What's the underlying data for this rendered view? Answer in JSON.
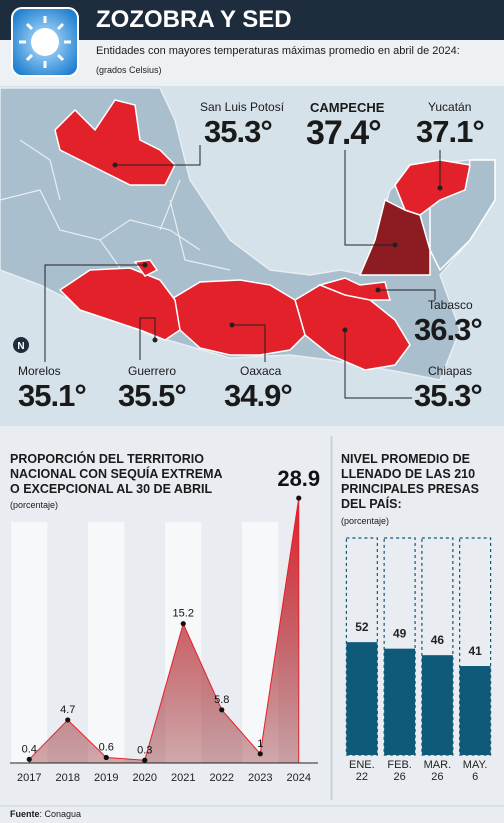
{
  "header": {
    "title": "ZOZOBRA Y SED",
    "subtitle": "Entidades con mayores temperaturas máximas promedio en abril de 2024:",
    "unit": "(grados Celsius)"
  },
  "map": {
    "states": [
      {
        "name": "San Luis Potosí",
        "temp": "35.3°"
      },
      {
        "name": "CAMPECHE",
        "temp": "37.4°"
      },
      {
        "name": "Yucatán",
        "temp": "37.1°"
      },
      {
        "name": "Tabasco",
        "temp": "36.3°"
      },
      {
        "name": "Chiapas",
        "temp": "35.3°"
      },
      {
        "name": "Morelos",
        "temp": "35.1°"
      },
      {
        "name": "Guerrero",
        "temp": "35.5°"
      },
      {
        "name": "Oaxaca",
        "temp": "34.9°"
      }
    ]
  },
  "chart_data": [
    {
      "type": "area",
      "title": "PROPORCIÓN DEL TERRITORIO NACIONAL CON SEQUÍA EXTREMA O EXCEPCIONAL AL 30 DE ABRIL",
      "subtitle": "(porcentaje)",
      "categories": [
        "2017",
        "2018",
        "2019",
        "2020",
        "2021",
        "2022",
        "2023",
        "2024"
      ],
      "values": [
        0.4,
        4.7,
        0.6,
        0.3,
        15.2,
        5.8,
        1,
        28.9
      ],
      "color": "#e3212b",
      "ylim": [
        0,
        30
      ]
    },
    {
      "type": "bar",
      "title": "NIVEL PROMEDIO DE LLENADO DE LAS 210 PRINCIPALES PRESAS DEL PAÍS:",
      "subtitle": "(porcentaje)",
      "categories": [
        "ENE. 22",
        "FEB. 26",
        "MAR. 26",
        "MAY. 6"
      ],
      "values": [
        52,
        49,
        46,
        41
      ],
      "color": "#0f5a78",
      "ylim": [
        0,
        100
      ]
    }
  ],
  "footer": {
    "label": "Fuente",
    "source": "Conagua"
  }
}
